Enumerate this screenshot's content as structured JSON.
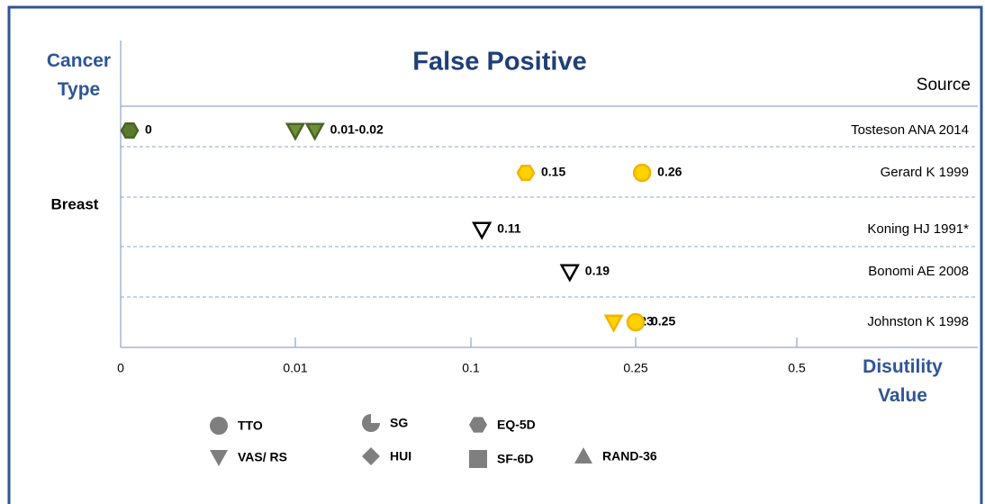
{
  "chart_data": {
    "type": "scatter",
    "title": "False Positive",
    "y_label": "Cancer Type",
    "x_label": "Disutility Value",
    "source_label": "Source",
    "category": "Breast",
    "xlim": [
      0,
      0.5
    ],
    "xticks": [
      0,
      0.01,
      0.1,
      0.25,
      0.5
    ],
    "grid": true,
    "rows": [
      {
        "source": "Tosteson ANA 2014",
        "values": [
          0,
          0.01,
          0.02
        ],
        "instruments": [
          "EQ-5D",
          "VAS/ RS",
          "VAS/ RS"
        ],
        "colors": [
          "#5b7a2e",
          "#6e8f35",
          "#6e8f35"
        ],
        "value_labels": [
          "0",
          null,
          "0.01-0.02"
        ]
      },
      {
        "source": "Gerard K 1999",
        "values": [
          0.15,
          0.26
        ],
        "instruments": [
          "EQ-5D",
          "TTO"
        ],
        "colors": [
          "#ffd200",
          "#ffd200"
        ]
      },
      {
        "source": "Koning HJ 1991*",
        "values": [
          0.11
        ],
        "instruments": [
          "VAS/ RS"
        ],
        "colors": [
          "#ffffff"
        ]
      },
      {
        "source": "Bonomi AE 2008",
        "values": [
          0.19
        ],
        "instruments": [
          "VAS/ RS"
        ],
        "colors": [
          "#ffffff"
        ]
      },
      {
        "source": "Johnston K 1998",
        "values": [
          0.23,
          0.25
        ],
        "instruments": [
          "VAS/ RS",
          "TTO"
        ],
        "colors": [
          "#ffd200",
          "#ffd200"
        ]
      }
    ],
    "legend": [
      {
        "name": "TTO",
        "marker": "circle"
      },
      {
        "name": "SG",
        "marker": "pie"
      },
      {
        "name": "EQ-5D",
        "marker": "hexagon"
      },
      {
        "name": "VAS/ RS",
        "marker": "triangle-down"
      },
      {
        "name": "HUI",
        "marker": "diamond"
      },
      {
        "name": "SF-6D",
        "marker": "square"
      },
      {
        "name": "RAND-36",
        "marker": "triangle-up"
      }
    ],
    "legend_color": "#7f7f7f"
  }
}
